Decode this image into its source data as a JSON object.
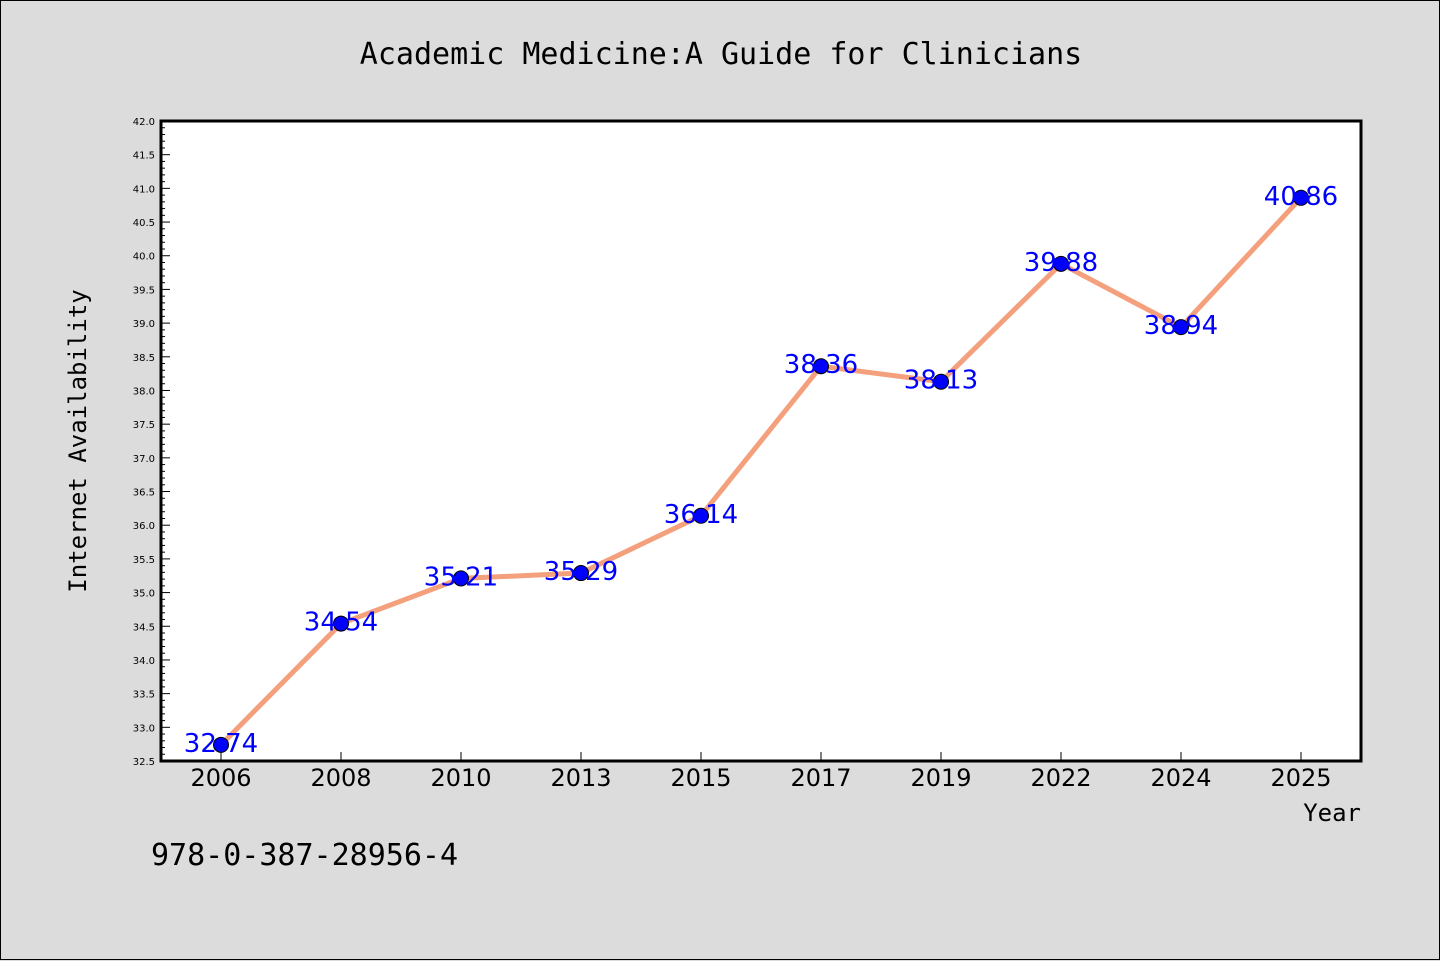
{
  "chart_data": {
    "type": "line",
    "title": "Academic Medicine:A Guide for Clinicians",
    "xlabel": "Year",
    "ylabel": "Internet Availability",
    "categories": [
      "2006",
      "2008",
      "2010",
      "2013",
      "2015",
      "2017",
      "2019",
      "2022",
      "2024",
      "2025"
    ],
    "values": [
      32.74,
      34.54,
      35.21,
      35.29,
      36.14,
      38.36,
      38.13,
      39.88,
      38.94,
      40.86
    ],
    "data_labels": [
      "32.74",
      "34.54",
      "35.21",
      "35.29",
      "36.14",
      "38.36",
      "38.13",
      "39.88",
      "38.94",
      "40.86"
    ],
    "ylim": [
      32.5,
      42.0
    ],
    "yticks": [
      "32.5",
      "33.0",
      "33.5",
      "34.0",
      "34.5",
      "35.0",
      "35.5",
      "36.0",
      "36.5",
      "37.0",
      "37.5",
      "38.0",
      "38.5",
      "39.0",
      "39.5",
      "40.0",
      "40.5",
      "41.0",
      "41.5",
      "42.0"
    ],
    "grid": false,
    "line_color": "#f4a07c",
    "marker_color": "#0000ff",
    "label_color": "#0000ff"
  },
  "footer": {
    "isbn": "978-0-387-28956-4"
  }
}
